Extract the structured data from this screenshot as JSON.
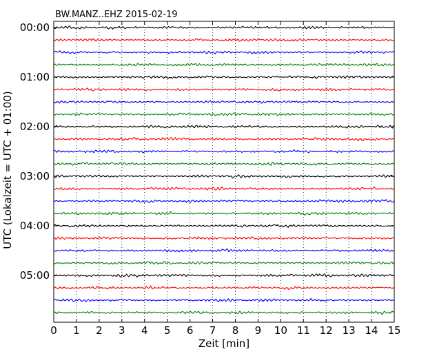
{
  "chart_data": {
    "type": "line",
    "subtype": "dayplot-seismogram",
    "title": "BW.MANZ..EHZ 2015-02-19",
    "xlabel": "Zeit  [min]",
    "ylabel": "UTC (Lokalzeit = UTC + 01:00)",
    "xlim": [
      0,
      15
    ],
    "x_ticks": [
      "0",
      "1",
      "2",
      "3",
      "4",
      "5",
      "6",
      "7",
      "8",
      "9",
      "10",
      "11",
      "12",
      "13",
      "14",
      "15"
    ],
    "y_tick_labels": [
      "00:00",
      "01:00",
      "02:00",
      "03:00",
      "04:00",
      "05:00"
    ],
    "y_ticks_trace_index": [
      0,
      4,
      8,
      12,
      16,
      20
    ],
    "interval_minutes": 15,
    "trace_count": 24,
    "trace_colors": [
      "#000000",
      "#ff0000",
      "#0000ff",
      "#008000"
    ],
    "x_grid": "dotted",
    "legend": "none"
  }
}
